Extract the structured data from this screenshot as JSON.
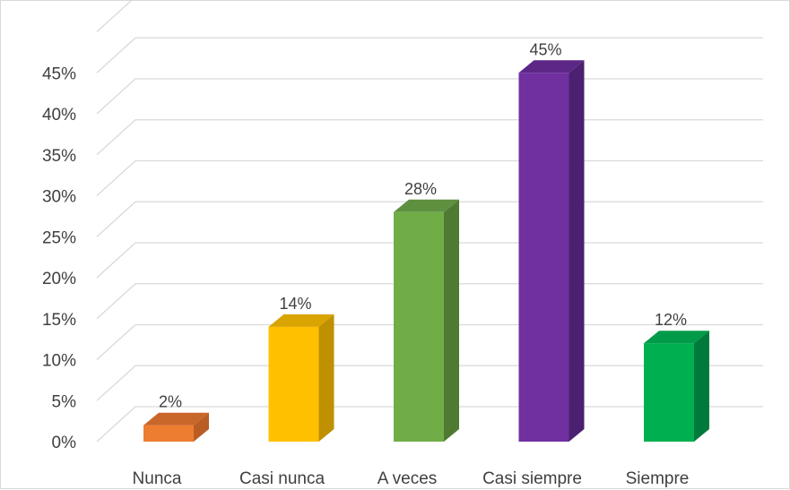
{
  "chart_data": {
    "type": "bar",
    "style": "3d-column",
    "categories": [
      "Nunca",
      "Casi nunca",
      "A veces",
      "Casi siempre",
      "Siempre"
    ],
    "values": [
      2,
      14,
      28,
      45,
      12
    ],
    "data_labels": [
      "2%",
      "14%",
      "28%",
      "45%",
      "12%"
    ],
    "yticks": [
      0,
      5,
      10,
      15,
      20,
      25,
      30,
      35,
      40,
      45
    ],
    "ytick_labels": [
      "0%",
      "5%",
      "10%",
      "15%",
      "20%",
      "25%",
      "30%",
      "35%",
      "40%",
      "45%"
    ],
    "ylim": [
      0,
      45
    ],
    "grid": true,
    "legend": "none",
    "colors": [
      "#ED7D31",
      "#FFC000",
      "#70AD47",
      "#7030A0",
      "#00B050"
    ],
    "side_colors": [
      "#B95D24",
      "#BF9000",
      "#4F7A31",
      "#4B2070",
      "#007A3B"
    ],
    "top_colors": [
      "#C9662A",
      "#D9A300",
      "#5E9040",
      "#5D2788",
      "#009A48"
    ]
  }
}
